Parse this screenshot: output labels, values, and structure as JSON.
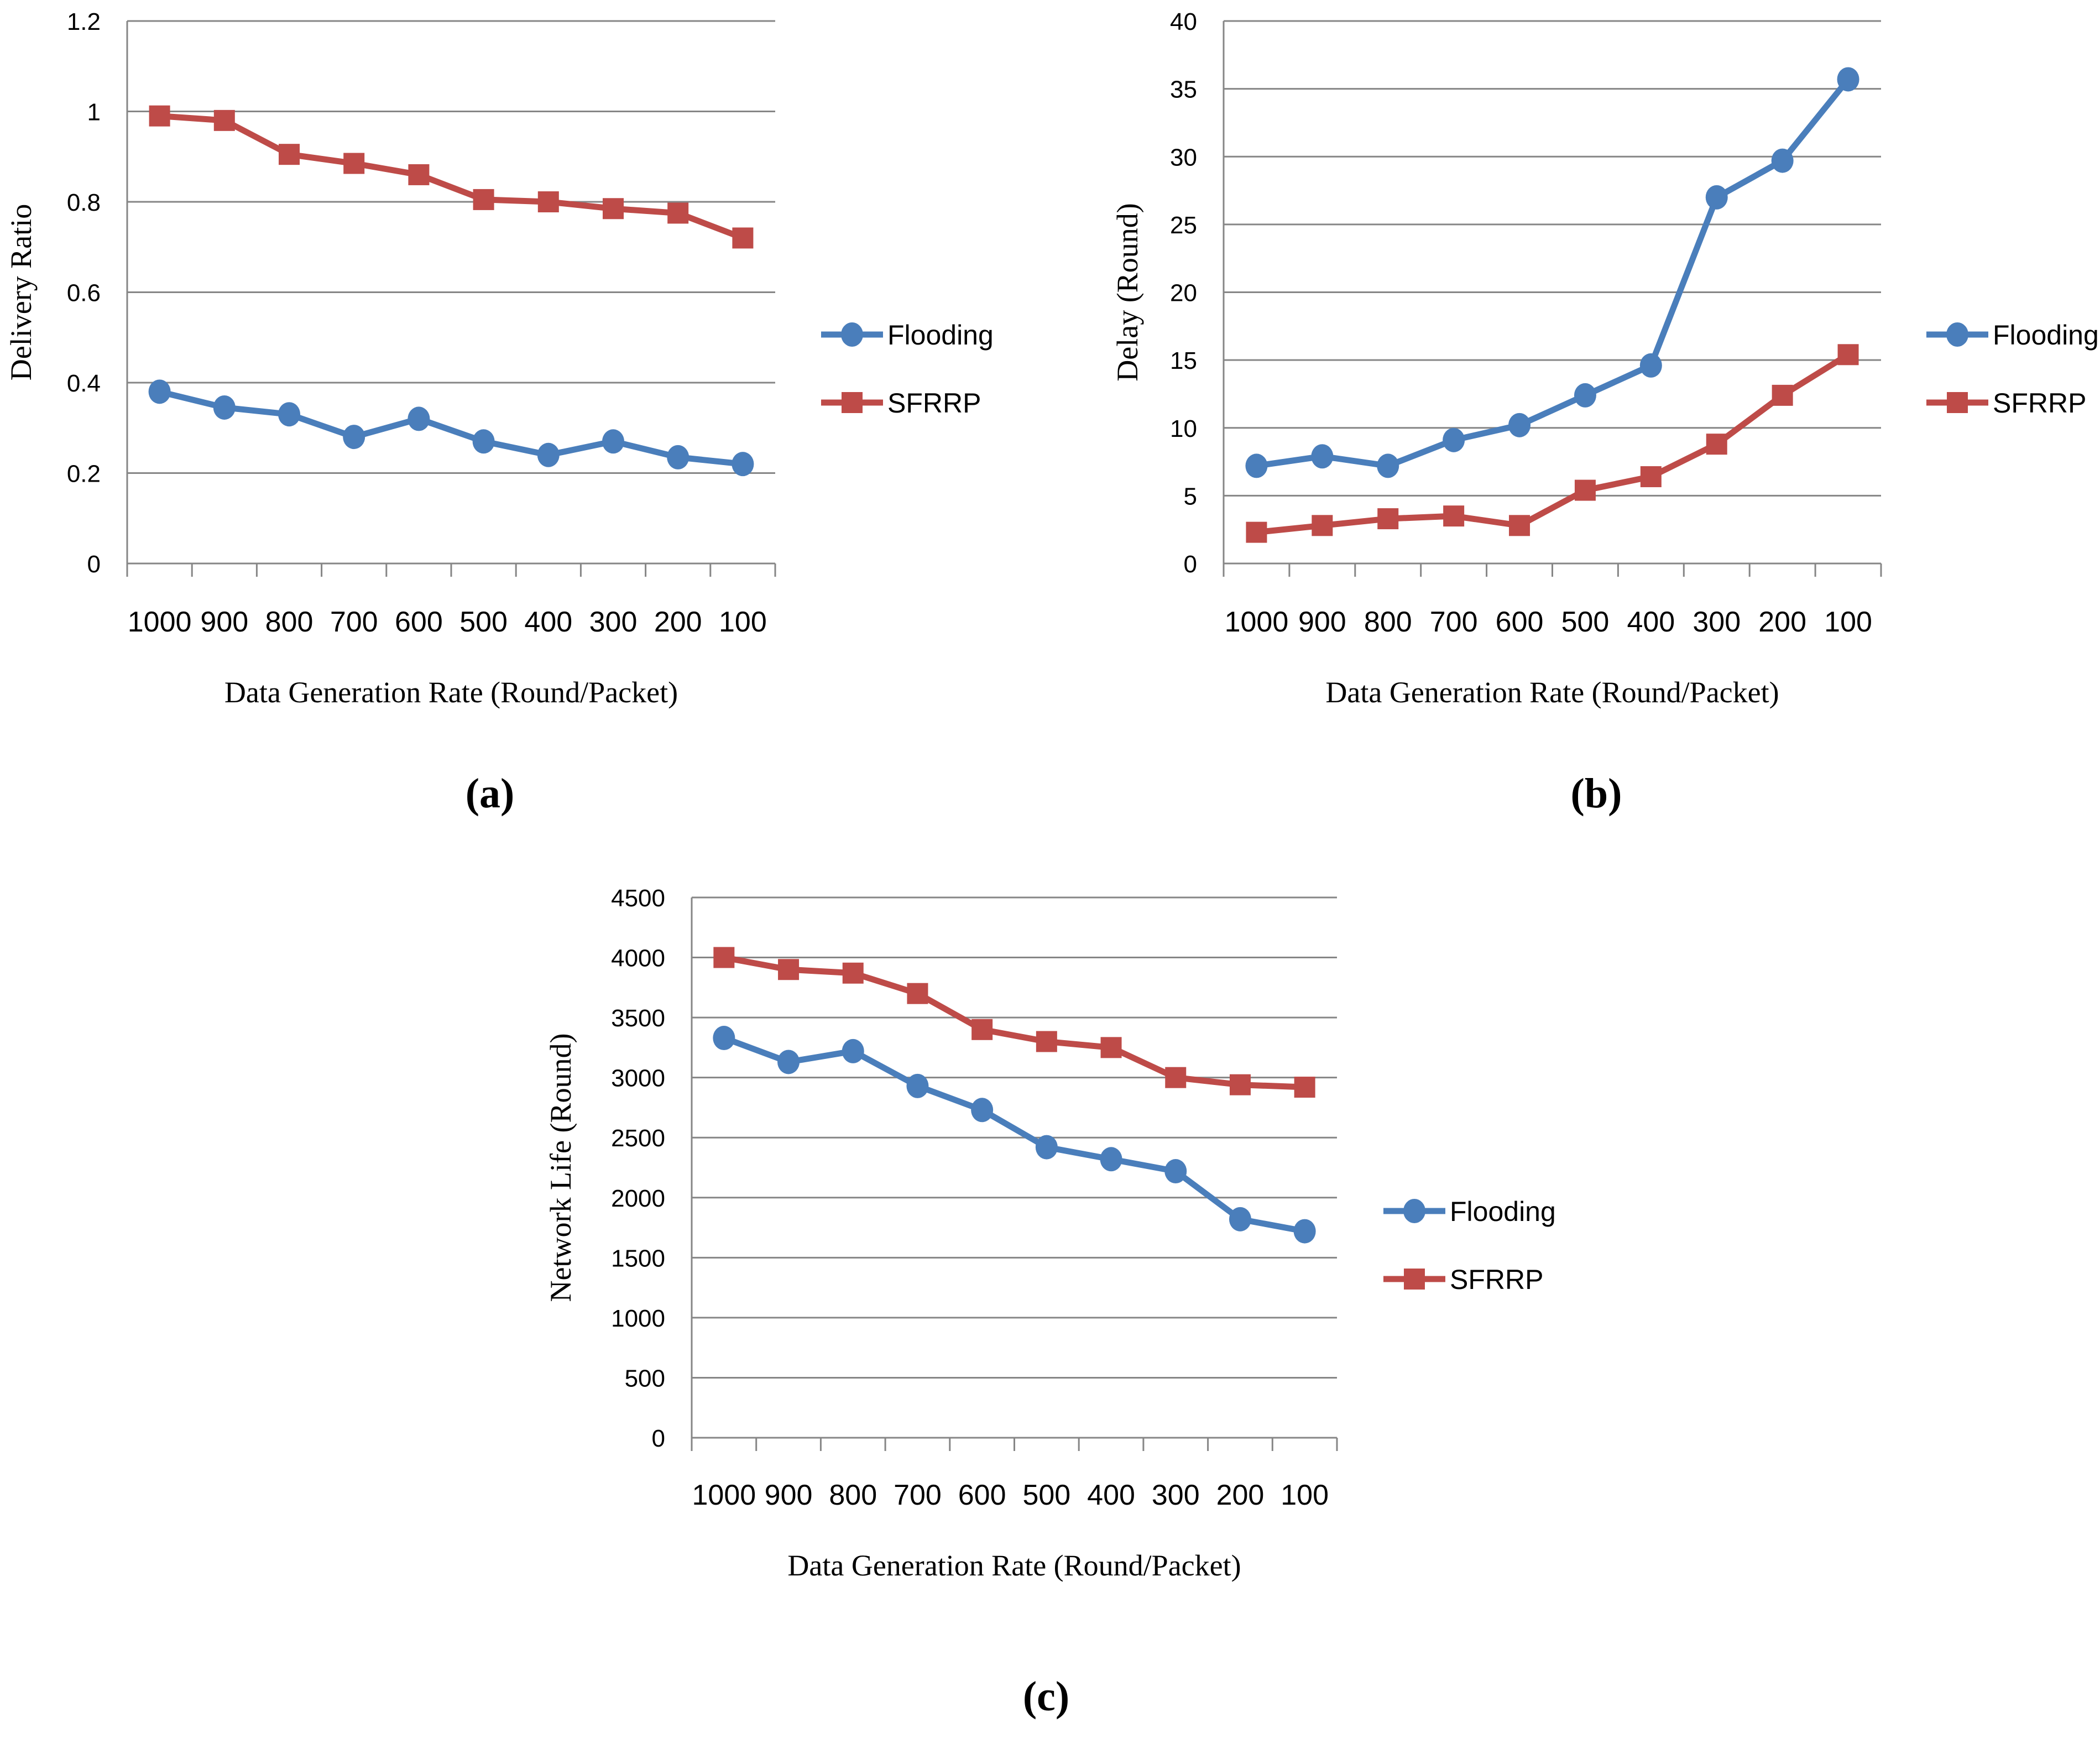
{
  "colors": {
    "flooding": "#4A7EBB",
    "sfrrp": "#BE4B48",
    "grid": "#868686"
  },
  "chart_data": [
    {
      "type": "line",
      "panel_label": "(a)",
      "categories": [
        "1000",
        "900",
        "800",
        "700",
        "600",
        "500",
        "400",
        "300",
        "200",
        "100"
      ],
      "series": [
        {
          "name": "Flooding",
          "marker": "circle",
          "values": [
            0.38,
            0.345,
            0.33,
            0.28,
            0.32,
            0.27,
            0.24,
            0.27,
            0.235,
            0.22
          ]
        },
        {
          "name": "SFRRP",
          "marker": "square",
          "values": [
            0.99,
            0.98,
            0.905,
            0.885,
            0.86,
            0.805,
            0.8,
            0.785,
            0.775,
            0.72
          ]
        }
      ],
      "xlabel": "Data Generation Rate (Round/Packet)",
      "ylabel": "Delivery Ratio",
      "ylim": [
        0,
        1.2
      ],
      "yticks": [
        0,
        0.2,
        0.4,
        0.6,
        0.8,
        1,
        1.2
      ],
      "ytick_labels": [
        "0",
        "0.2",
        "0.4",
        "0.6",
        "0.8",
        "1",
        "1.2"
      ],
      "grid": true,
      "legend": "right"
    },
    {
      "type": "line",
      "panel_label": "(b)",
      "categories": [
        "1000",
        "900",
        "800",
        "700",
        "600",
        "500",
        "400",
        "300",
        "200",
        "100"
      ],
      "series": [
        {
          "name": "Flooding",
          "marker": "circle",
          "values": [
            7.2,
            7.9,
            7.2,
            9.1,
            10.2,
            12.4,
            14.6,
            27,
            29.7,
            35.7
          ]
        },
        {
          "name": "SFRRP",
          "marker": "square",
          "values": [
            2.3,
            2.8,
            3.3,
            3.5,
            2.8,
            5.4,
            6.4,
            8.8,
            12.4,
            15.4
          ]
        }
      ],
      "xlabel": "Data Generation Rate (Round/Packet)",
      "ylabel": "Delay (Round)",
      "ylim": [
        0,
        40
      ],
      "yticks": [
        0,
        5,
        10,
        15,
        20,
        25,
        30,
        35,
        40
      ],
      "ytick_labels": [
        "0",
        "5",
        "10",
        "15",
        "20",
        "25",
        "30",
        "35",
        "40"
      ],
      "grid": true,
      "legend": "right"
    },
    {
      "type": "line",
      "panel_label": "(c)",
      "categories": [
        "1000",
        "900",
        "800",
        "700",
        "600",
        "500",
        "400",
        "300",
        "200",
        "100"
      ],
      "series": [
        {
          "name": "Flooding",
          "marker": "circle",
          "values": [
            3330,
            3130,
            3220,
            2930,
            2730,
            2420,
            2320,
            2220,
            1820,
            1720
          ]
        },
        {
          "name": "SFRRP",
          "marker": "square",
          "values": [
            4000,
            3900,
            3870,
            3700,
            3400,
            3300,
            3250,
            3000,
            2940,
            2920
          ]
        }
      ],
      "xlabel": "Data Generation Rate  (Round/Packet)",
      "ylabel": "Network Life (Round)",
      "ylim": [
        0,
        4500
      ],
      "yticks": [
        0,
        500,
        1000,
        1500,
        2000,
        2500,
        3000,
        3500,
        4000,
        4500
      ],
      "ytick_labels": [
        "0",
        "500",
        "1000",
        "1500",
        "2000",
        "2500",
        "3000",
        "3500",
        "4000",
        "4500"
      ],
      "grid": true,
      "legend": "right"
    }
  ]
}
